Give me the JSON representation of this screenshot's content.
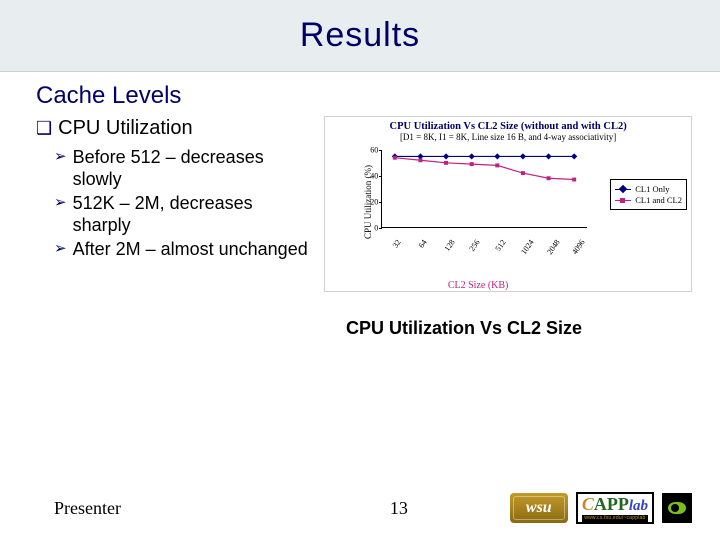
{
  "slide_title": "Results",
  "section_heading": "Cache Levels",
  "sub_heading": "CPU Utilization",
  "bullets": [
    "Before 512 – decreases slowly",
    "512K – 2M, decreases sharply",
    "After 2M – almost unchanged"
  ],
  "chart": {
    "type": "line",
    "title": "CPU Utilization Vs CL2 Size (without and with CL2)",
    "subtitle": "[D1 = 8K, I1 = 8K, Line size 16 B, and 4-way associativity]",
    "ylabel": "CPU Utilization (%)",
    "xlabel": "CL2 Size (KB)",
    "ylim": [
      0,
      60
    ],
    "ytick_step": 20,
    "categories": [
      "32",
      "64",
      "128",
      "256",
      "512",
      "1024",
      "2048",
      "4096"
    ],
    "series": [
      {
        "name": "CL1 Only",
        "color": "#000088",
        "marker": "diamond",
        "marker_color": "#000088",
        "values": [
          55,
          55,
          55,
          55,
          55,
          55,
          55,
          55
        ]
      },
      {
        "name": "CL1 and CL2",
        "color": "#c02080",
        "marker": "square",
        "marker_color": "#c02080",
        "values": [
          54,
          52,
          50,
          49,
          48,
          42,
          38,
          37
        ]
      }
    ],
    "background_color": "#ffffff",
    "axis_color": "#000000",
    "label_fontsize": 9,
    "title_fontsize": 10.5
  },
  "caption": "CPU Utilization Vs CL2 Size",
  "footer": {
    "presenter": "Presenter",
    "page_number": "13",
    "wsu_text": "wsu",
    "capp_text": "CAPPlab",
    "capp_bar_text": "www.cs.fsu.edu/~capplab"
  }
}
